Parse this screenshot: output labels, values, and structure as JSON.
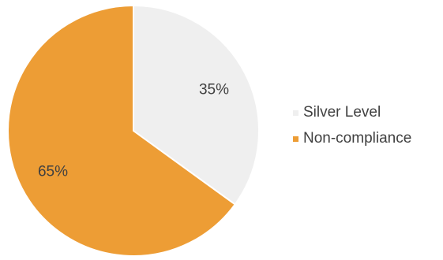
{
  "chart_data": {
    "type": "pie",
    "title": "",
    "slices": [
      {
        "name": "Silver Level",
        "value": 35,
        "label": "35%",
        "color": "#efefef"
      },
      {
        "name": "Non-compliance",
        "value": 65,
        "label": "65%",
        "color": "#ed9d35"
      }
    ],
    "start_angle_deg": 0,
    "direction": "clockwise",
    "legend_position": "right",
    "slice_border_color": "#ffffff"
  }
}
